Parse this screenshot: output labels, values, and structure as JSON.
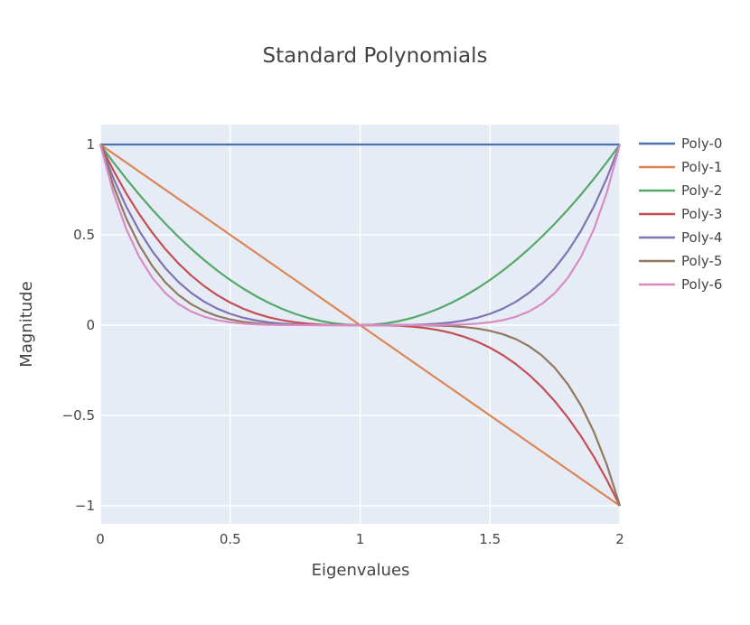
{
  "chart_data": {
    "type": "line",
    "title": "Standard  Polynomials",
    "xlabel": "Eigenvalues",
    "ylabel": "Magnitude",
    "xlim": [
      0,
      2
    ],
    "ylim": [
      -1.1,
      1.11
    ],
    "x_ticks": [
      {
        "value": 0,
        "label": "0"
      },
      {
        "value": 0.5,
        "label": "0.5"
      },
      {
        "value": 1,
        "label": "1"
      },
      {
        "value": 1.5,
        "label": "1.5"
      },
      {
        "value": 2,
        "label": "2"
      }
    ],
    "y_ticks": [
      {
        "value": -1,
        "label": "−1"
      },
      {
        "value": -0.5,
        "label": "−0.5"
      },
      {
        "value": 0,
        "label": "0"
      },
      {
        "value": 0.5,
        "label": "0.5"
      },
      {
        "value": 1,
        "label": "1"
      }
    ],
    "grid": true,
    "legend_position": "right",
    "plot_bgcolor": "#e5ecf6",
    "x": [
      0,
      0.05,
      0.1,
      0.15,
      0.2,
      0.25,
      0.3,
      0.35,
      0.4,
      0.45,
      0.5,
      0.55,
      0.6,
      0.65,
      0.7,
      0.75,
      0.8,
      0.85,
      0.9,
      0.95,
      1,
      1.05,
      1.1,
      1.15,
      1.2,
      1.25,
      1.3,
      1.35,
      1.4,
      1.45,
      1.5,
      1.55,
      1.6,
      1.65,
      1.7,
      1.75,
      1.8,
      1.85,
      1.9,
      1.95,
      2
    ],
    "series": [
      {
        "name": "Poly-0",
        "color": "#4c72b0",
        "values": [
          1,
          1,
          1,
          1,
          1,
          1,
          1,
          1,
          1,
          1,
          1,
          1,
          1,
          1,
          1,
          1,
          1,
          1,
          1,
          1,
          1,
          1,
          1,
          1,
          1,
          1,
          1,
          1,
          1,
          1,
          1,
          1,
          1,
          1,
          1,
          1,
          1,
          1,
          1,
          1,
          1
        ]
      },
      {
        "name": "Poly-1",
        "color": "#dd8452",
        "values": [
          1,
          0.95,
          0.9,
          0.85,
          0.8,
          0.75,
          0.7,
          0.65,
          0.6,
          0.55,
          0.5,
          0.45,
          0.4,
          0.35,
          0.3,
          0.25,
          0.2,
          0.15,
          0.1,
          0.05,
          0,
          -0.05,
          -0.1,
          -0.15,
          -0.2,
          -0.25,
          -0.3,
          -0.35,
          -0.4,
          -0.45,
          -0.5,
          -0.55,
          -0.6,
          -0.65,
          -0.7,
          -0.75,
          -0.8,
          -0.85,
          -0.9,
          -0.95,
          -1
        ]
      },
      {
        "name": "Poly-2",
        "color": "#55a868",
        "values": [
          1,
          0.9025,
          0.81,
          0.7225,
          0.64,
          0.5625,
          0.49,
          0.4225,
          0.36,
          0.3025,
          0.25,
          0.2025,
          0.16,
          0.1225,
          0.09,
          0.0625,
          0.04,
          0.0225,
          0.01,
          0.0025,
          0,
          0.0025,
          0.01,
          0.0225,
          0.04,
          0.0625,
          0.09,
          0.1225,
          0.16,
          0.2025,
          0.25,
          0.3025,
          0.36,
          0.4225,
          0.49,
          0.5625,
          0.64,
          0.7225,
          0.81,
          0.9025,
          1
        ]
      },
      {
        "name": "Poly-3",
        "color": "#c44e52",
        "values": [
          1,
          0.857375,
          0.729,
          0.614125,
          0.512,
          0.421875,
          0.343,
          0.274625,
          0.216,
          0.166375,
          0.125,
          0.091125,
          0.064,
          0.042875,
          0.027,
          0.015625,
          0.008,
          0.003375,
          0.001,
          0.000125,
          0,
          -0.000125,
          -0.001,
          -0.003375,
          -0.008,
          -0.015625,
          -0.027,
          -0.042875,
          -0.064,
          -0.091125,
          -0.125,
          -0.166375,
          -0.216,
          -0.274625,
          -0.343,
          -0.421875,
          -0.512,
          -0.614125,
          -0.729,
          -0.857375,
          -1
        ]
      },
      {
        "name": "Poly-4",
        "color": "#8172b3",
        "values": [
          1,
          0.8145,
          0.6561,
          0.522,
          0.4096,
          0.3164,
          0.2401,
          0.1785,
          0.1296,
          0.0915,
          0.0625,
          0.041,
          0.0256,
          0.015,
          0.0081,
          0.0039,
          0.0016,
          0.0005,
          0.0001,
          0,
          0,
          0,
          0.0001,
          0.0005,
          0.0016,
          0.0039,
          0.0081,
          0.015,
          0.0256,
          0.041,
          0.0625,
          0.0915,
          0.1296,
          0.1785,
          0.2401,
          0.3164,
          0.4096,
          0.522,
          0.6561,
          0.8145,
          1
        ]
      },
      {
        "name": "Poly-5",
        "color": "#937860",
        "values": [
          1,
          0.7738,
          0.5905,
          0.4437,
          0.3277,
          0.2373,
          0.1681,
          0.116,
          0.0778,
          0.0503,
          0.0313,
          0.0185,
          0.0102,
          0.0053,
          0.0024,
          0.001,
          0.0003,
          0.0001,
          0,
          0,
          0,
          0,
          0,
          -0.0001,
          -0.0003,
          -0.001,
          -0.0024,
          -0.0053,
          -0.0102,
          -0.0185,
          -0.0313,
          -0.0503,
          -0.0778,
          -0.116,
          -0.1681,
          -0.2373,
          -0.3277,
          -0.4437,
          -0.5905,
          -0.7738,
          -1
        ]
      },
      {
        "name": "Poly-6",
        "color": "#da8bc3",
        "values": [
          1,
          0.7351,
          0.5314,
          0.3771,
          0.2621,
          0.178,
          0.1176,
          0.0754,
          0.0467,
          0.0277,
          0.0156,
          0.0083,
          0.0041,
          0.0018,
          0.0007,
          0.0002,
          0.0001,
          0,
          0,
          0,
          0,
          0,
          0,
          0,
          0.0001,
          0.0002,
          0.0007,
          0.0018,
          0.0041,
          0.0083,
          0.0156,
          0.0277,
          0.0467,
          0.0754,
          0.1176,
          0.178,
          0.2621,
          0.3771,
          0.5314,
          0.7351,
          1
        ]
      }
    ]
  }
}
